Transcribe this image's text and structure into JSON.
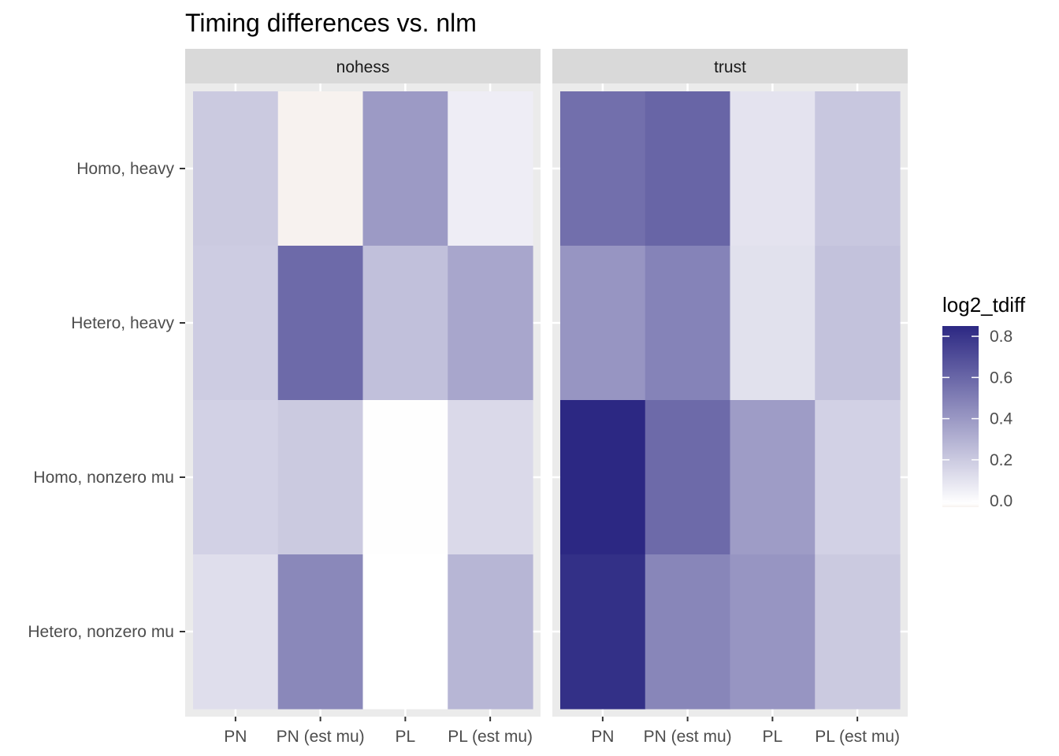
{
  "chart_data": {
    "type": "heatmap",
    "title": "Timing differences vs. nlm",
    "xlabel": "",
    "ylabel": "",
    "x_categories": [
      "PN",
      "PN (est mu)",
      "PL",
      "PL (est mu)"
    ],
    "y_categories": [
      "Homo, heavy",
      "Hetero, heavy",
      "Homo, nonzero mu",
      "Hetero, nonzero mu"
    ],
    "facets": [
      {
        "name": "nohess",
        "values": [
          [
            0.21,
            -0.02,
            0.4,
            0.07
          ],
          [
            0.2,
            0.59,
            0.25,
            0.35
          ],
          [
            0.18,
            0.21,
            0.005,
            0.15
          ],
          [
            0.13,
            0.47,
            0.0,
            0.29
          ]
        ]
      },
      {
        "name": "trust",
        "values": [
          [
            0.57,
            0.61,
            0.11,
            0.22
          ],
          [
            0.42,
            0.49,
            0.12,
            0.24
          ],
          [
            0.85,
            0.59,
            0.39,
            0.18
          ],
          [
            0.82,
            0.48,
            0.42,
            0.21
          ]
        ]
      }
    ],
    "color_scale": {
      "name": "log2_tdiff",
      "low": "#ffffff",
      "high": "#2c2883",
      "negative": "#f7f2ef",
      "domain": [
        0,
        0.85
      ],
      "ticks": [
        0.8,
        0.6,
        0.4,
        0.2,
        0.0
      ]
    },
    "grid": true,
    "legend_position": "right"
  }
}
